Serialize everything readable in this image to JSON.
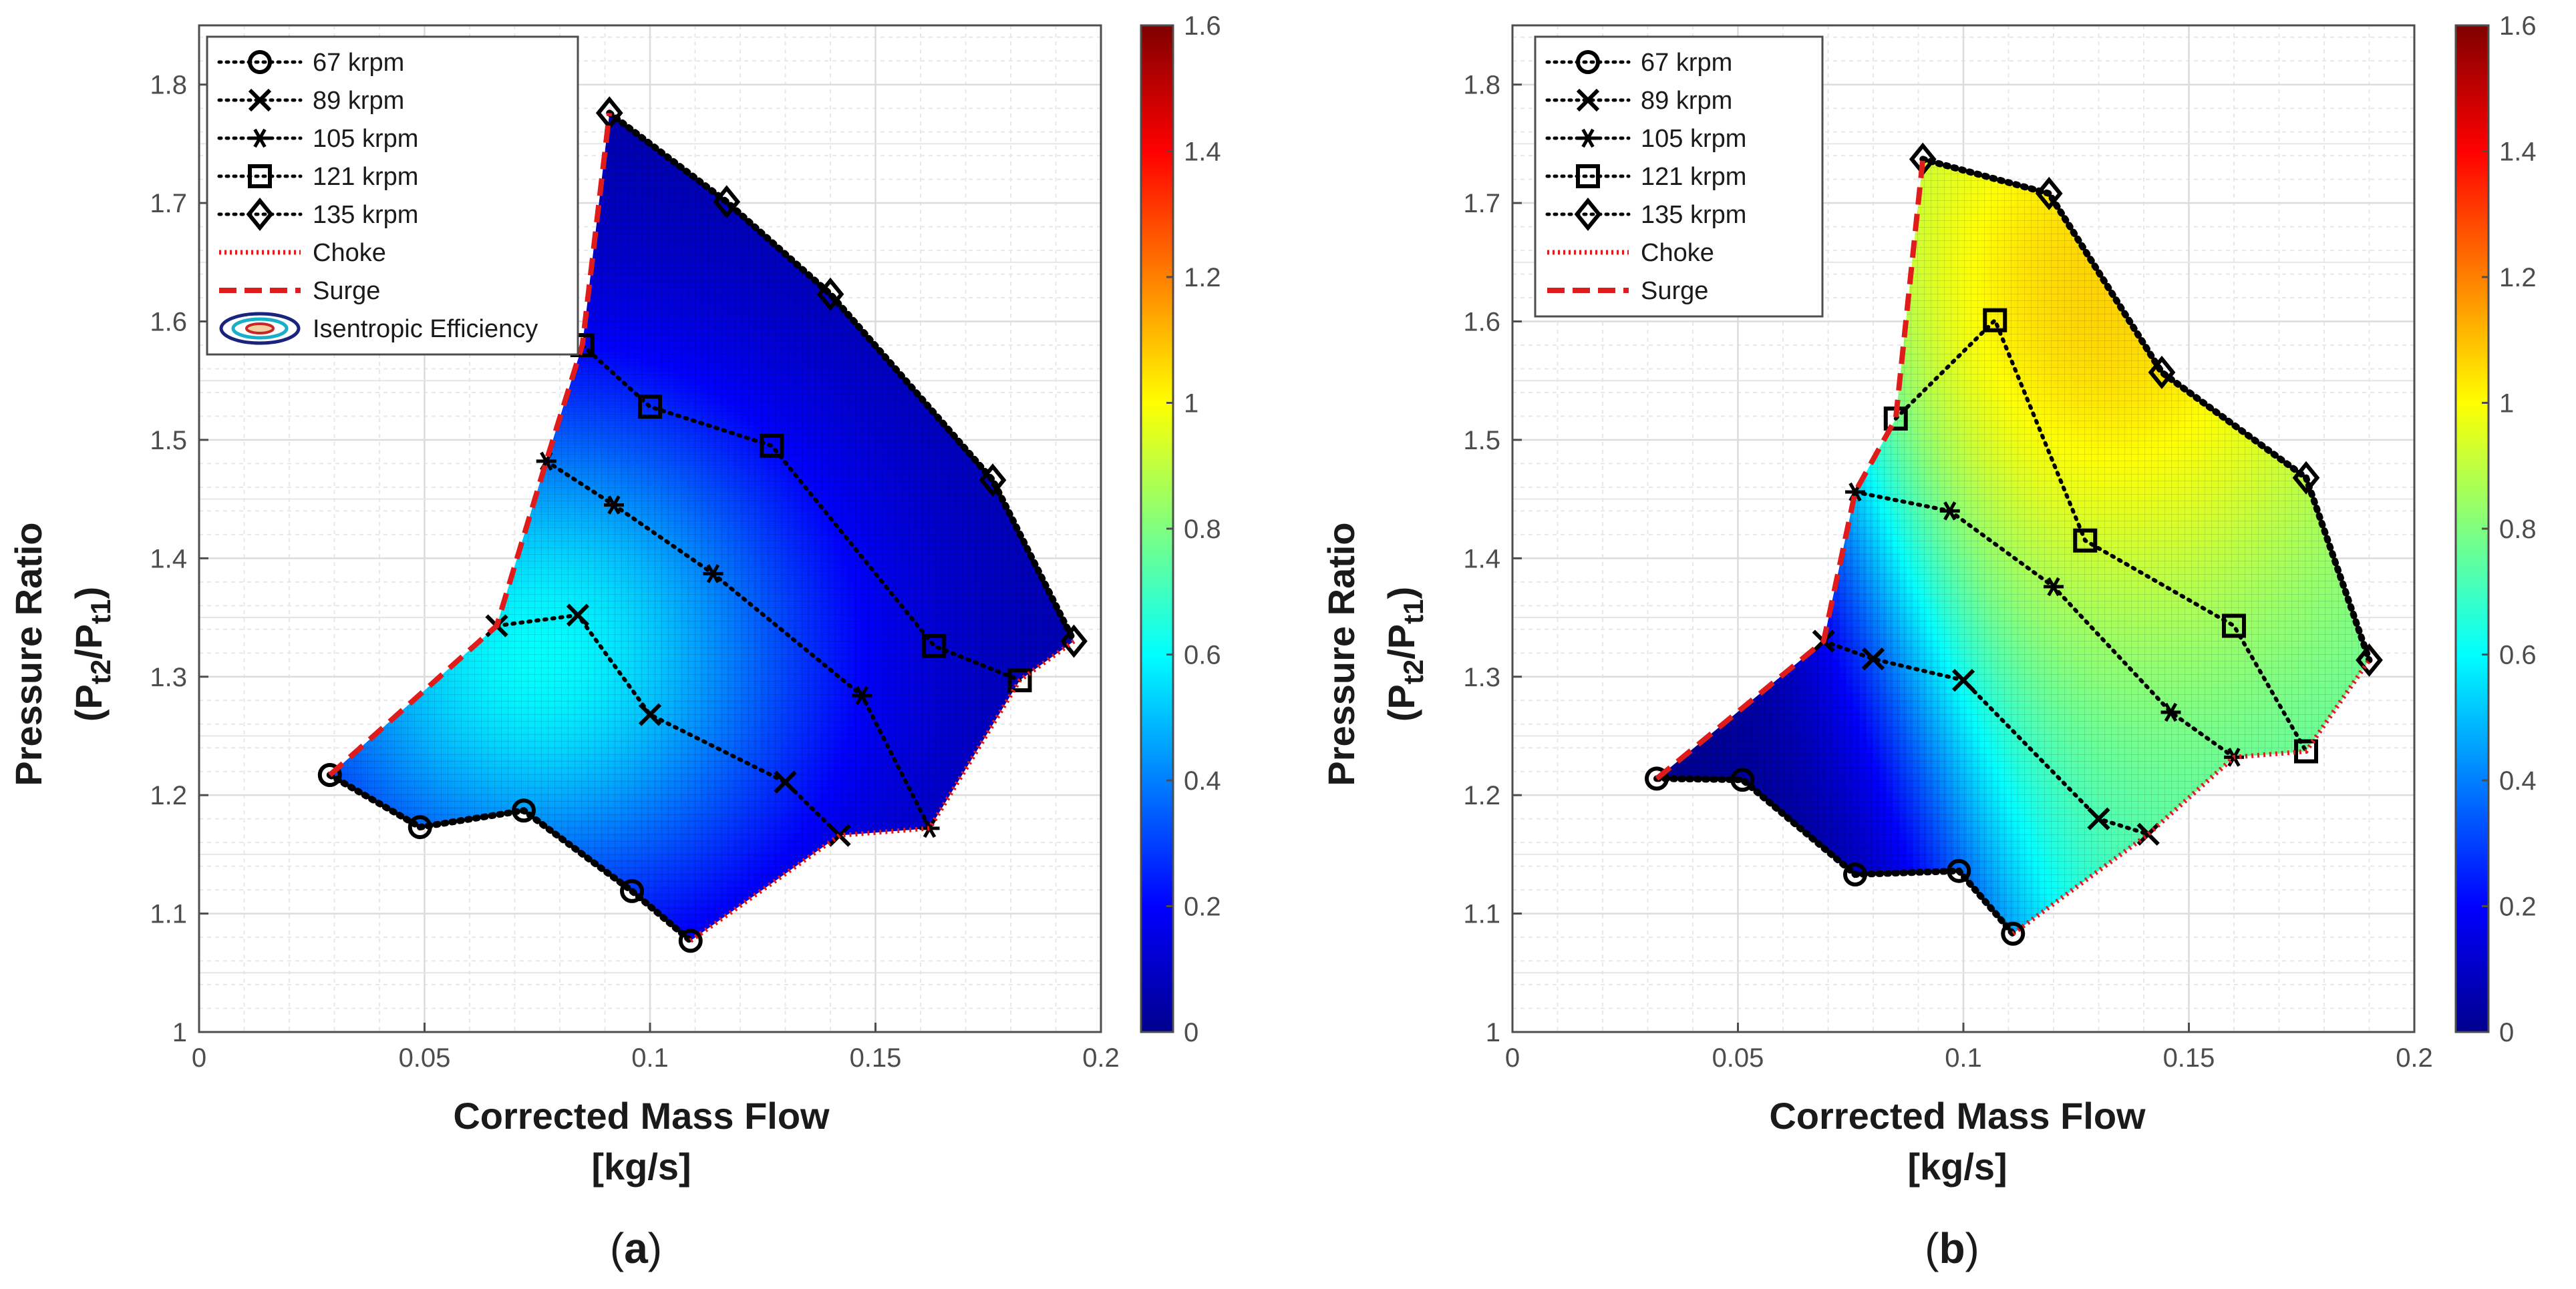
{
  "colorbar": {
    "min": 0,
    "max": 1.6,
    "ticks": [
      "0",
      "0.2",
      "0.4",
      "0.6",
      "0.8",
      "1",
      "1.2",
      "1.4",
      "1.6"
    ],
    "colormap": "jet"
  },
  "colors": {
    "line": "#000000",
    "choke": "#e01b1b",
    "surge": "#e01b1b",
    "grid": "#dcdcdc",
    "axis": "#4d4d4d",
    "label": "#1a1a1a"
  },
  "chart_data": [
    {
      "type": "heatmap",
      "caption_letter": "a",
      "xlabel_line1": "Corrected Mass Flow",
      "xlabel_line2": "[kg/s]",
      "ylabel_line1": "Pressure Ratio",
      "ylabel_line2": "(P",
      "ylabel_sub1": "t2",
      "ylabel_mid": "/P",
      "ylabel_sub2": "t1",
      "ylabel_end": ")",
      "xlim": [
        0,
        0.2
      ],
      "ylim": [
        1,
        1.85
      ],
      "xticks": [
        "0",
        "0.05",
        "0.1",
        "0.15",
        "0.2"
      ],
      "yticks": [
        "1",
        "1.1",
        "1.2",
        "1.3",
        "1.4",
        "1.5",
        "1.6",
        "1.7",
        "1.8"
      ],
      "grid": true,
      "legend_position": "top-left",
      "legend": [
        "67 krpm",
        "89 krpm",
        "105 krpm",
        "121 krpm",
        "135 krpm",
        "Choke",
        "Surge",
        "Isentropic Efficiency"
      ],
      "field_description": "Isentropic efficiency, colour scale 0 to 1.6",
      "field_values_est": {
        "low": 0.05,
        "peak": 0.6,
        "peak_location": [
          0.075,
          1.32
        ]
      },
      "series": [
        {
          "name": "67 krpm",
          "marker": "circle",
          "points": [
            [
              0.029,
              1.217
            ],
            [
              0.049,
              1.173
            ],
            [
              0.072,
              1.187
            ],
            [
              0.096,
              1.119
            ],
            [
              0.109,
              1.077
            ]
          ]
        },
        {
          "name": "89 krpm",
          "marker": "x",
          "points": [
            [
              0.066,
              1.343
            ],
            [
              0.084,
              1.352
            ],
            [
              0.1,
              1.268
            ],
            [
              0.13,
              1.211
            ],
            [
              0.142,
              1.166
            ]
          ]
        },
        {
          "name": "105 krpm",
          "marker": "asterisk",
          "points": [
            [
              0.077,
              1.482
            ],
            [
              0.092,
              1.445
            ],
            [
              0.114,
              1.387
            ],
            [
              0.147,
              1.284
            ],
            [
              0.162,
              1.172
            ]
          ]
        },
        {
          "name": "121 krpm",
          "marker": "square",
          "points": [
            [
              0.085,
              1.58
            ],
            [
              0.1,
              1.528
            ],
            [
              0.127,
              1.495
            ],
            [
              0.163,
              1.326
            ],
            [
              0.182,
              1.297
            ]
          ]
        },
        {
          "name": "135 krpm",
          "marker": "diamond",
          "points": [
            [
              0.091,
              1.776
            ],
            [
              0.117,
              1.701
            ],
            [
              0.14,
              1.623
            ],
            [
              0.176,
              1.466
            ],
            [
              0.194,
              1.33
            ]
          ]
        }
      ],
      "choke": [
        [
          0.109,
          1.077
        ],
        [
          0.142,
          1.166
        ],
        [
          0.162,
          1.172
        ],
        [
          0.182,
          1.297
        ],
        [
          0.194,
          1.33
        ]
      ],
      "surge": [
        [
          0.029,
          1.217
        ],
        [
          0.066,
          1.343
        ],
        [
          0.077,
          1.482
        ],
        [
          0.085,
          1.58
        ],
        [
          0.091,
          1.776
        ]
      ]
    },
    {
      "type": "heatmap",
      "caption_letter": "b",
      "xlabel_line1": "Corrected Mass Flow",
      "xlabel_line2": "[kg/s]",
      "ylabel_line1": "Pressure Ratio",
      "ylabel_line2": "(P",
      "ylabel_sub1": "t2",
      "ylabel_mid": "/P",
      "ylabel_sub2": "t1",
      "ylabel_end": ")",
      "xlim": [
        0,
        0.2
      ],
      "ylim": [
        1,
        1.85
      ],
      "xticks": [
        "0",
        "0.05",
        "0.1",
        "0.15",
        "0.2"
      ],
      "yticks": [
        "1",
        "1.1",
        "1.2",
        "1.3",
        "1.4",
        "1.5",
        "1.6",
        "1.7",
        "1.8"
      ],
      "grid": true,
      "legend_position": "top-left",
      "legend": [
        "67 krpm",
        "89 krpm",
        "105 krpm",
        "121 krpm",
        "135 krpm",
        "Choke",
        "Surge"
      ],
      "field_description": "Colour field on scale 0 to 1.6 (no label shown)",
      "field_values_est": {
        "low": 0.0,
        "peak": 1.05,
        "peak_location": [
          0.13,
          1.62
        ]
      },
      "series": [
        {
          "name": "67 krpm",
          "marker": "circle",
          "points": [
            [
              0.032,
              1.214
            ],
            [
              0.051,
              1.213
            ],
            [
              0.076,
              1.133
            ],
            [
              0.099,
              1.136
            ],
            [
              0.111,
              1.083
            ]
          ]
        },
        {
          "name": "89 krpm",
          "marker": "x",
          "points": [
            [
              0.069,
              1.33
            ],
            [
              0.08,
              1.315
            ],
            [
              0.1,
              1.297
            ],
            [
              0.13,
              1.18
            ],
            [
              0.141,
              1.167
            ]
          ]
        },
        {
          "name": "105 krpm",
          "marker": "asterisk",
          "points": [
            [
              0.076,
              1.456
            ],
            [
              0.097,
              1.44
            ],
            [
              0.12,
              1.376
            ],
            [
              0.146,
              1.27
            ],
            [
              0.16,
              1.232
            ]
          ]
        },
        {
          "name": "121 krpm",
          "marker": "square",
          "points": [
            [
              0.085,
              1.518
            ],
            [
              0.107,
              1.601
            ],
            [
              0.127,
              1.415
            ],
            [
              0.16,
              1.343
            ],
            [
              0.176,
              1.237
            ]
          ]
        },
        {
          "name": "135 krpm",
          "marker": "diamond",
          "points": [
            [
              0.091,
              1.737
            ],
            [
              0.119,
              1.708
            ],
            [
              0.144,
              1.557
            ],
            [
              0.176,
              1.468
            ],
            [
              0.19,
              1.314
            ]
          ]
        }
      ],
      "choke": [
        [
          0.111,
          1.083
        ],
        [
          0.141,
          1.167
        ],
        [
          0.16,
          1.232
        ],
        [
          0.176,
          1.237
        ],
        [
          0.19,
          1.314
        ]
      ],
      "surge": [
        [
          0.032,
          1.214
        ],
        [
          0.069,
          1.33
        ],
        [
          0.076,
          1.456
        ],
        [
          0.085,
          1.518
        ],
        [
          0.091,
          1.737
        ]
      ]
    }
  ]
}
